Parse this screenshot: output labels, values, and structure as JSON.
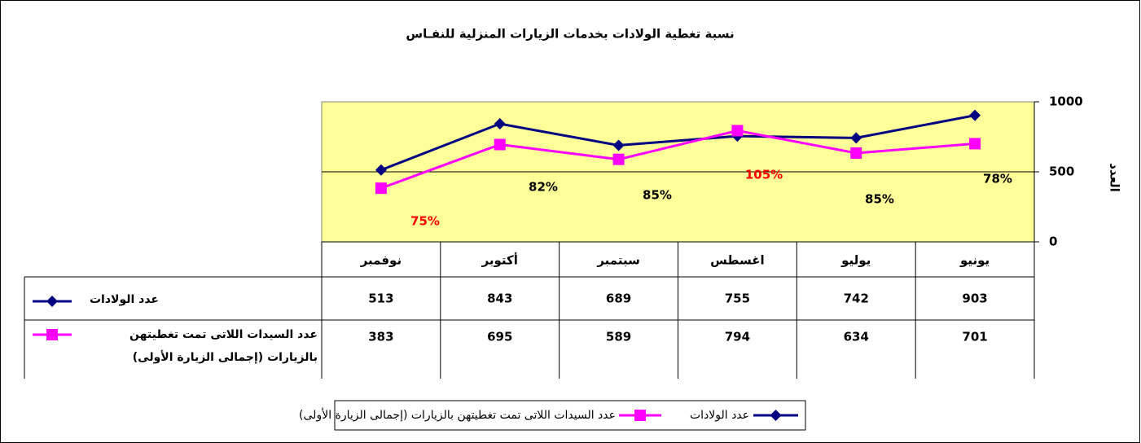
{
  "chart_data": {
    "type": "line",
    "title": "نسبة تغطية الولادات بخدمات الزيارات المنزلية للنفـاس",
    "y_label": "العدد",
    "categories": [
      "نوفمبر",
      "أكتوبر",
      "سبتمبر",
      "اغسطس",
      "يوليو",
      "يونيو"
    ],
    "series": [
      {
        "name": "عدد الولادات",
        "color": "#000080",
        "marker": "diamond",
        "values": [
          513,
          843,
          689,
          755,
          742,
          903
        ]
      },
      {
        "name": "عدد السيدات اللاتى تمت تغطيتهن بالزيارات (إجمالى الزيارة الأولى)",
        "color": "#ff00ff",
        "marker": "square",
        "values": [
          383,
          695,
          589,
          794,
          634,
          701
        ]
      }
    ],
    "coverage": {
      "values": [
        75,
        82,
        85,
        105,
        85,
        78
      ],
      "value_labels": [
        "75%",
        "82%",
        "85%",
        "105%",
        "85%",
        "78%"
      ],
      "colors": [
        "#ff0000",
        "#000000",
        "#000000",
        "#ff0000",
        "#000000",
        "#000000"
      ]
    },
    "ylim": [
      0,
      1000
    ],
    "yticks": [
      0,
      500,
      1000
    ],
    "grid": true,
    "plot_background": "#ffff99"
  }
}
